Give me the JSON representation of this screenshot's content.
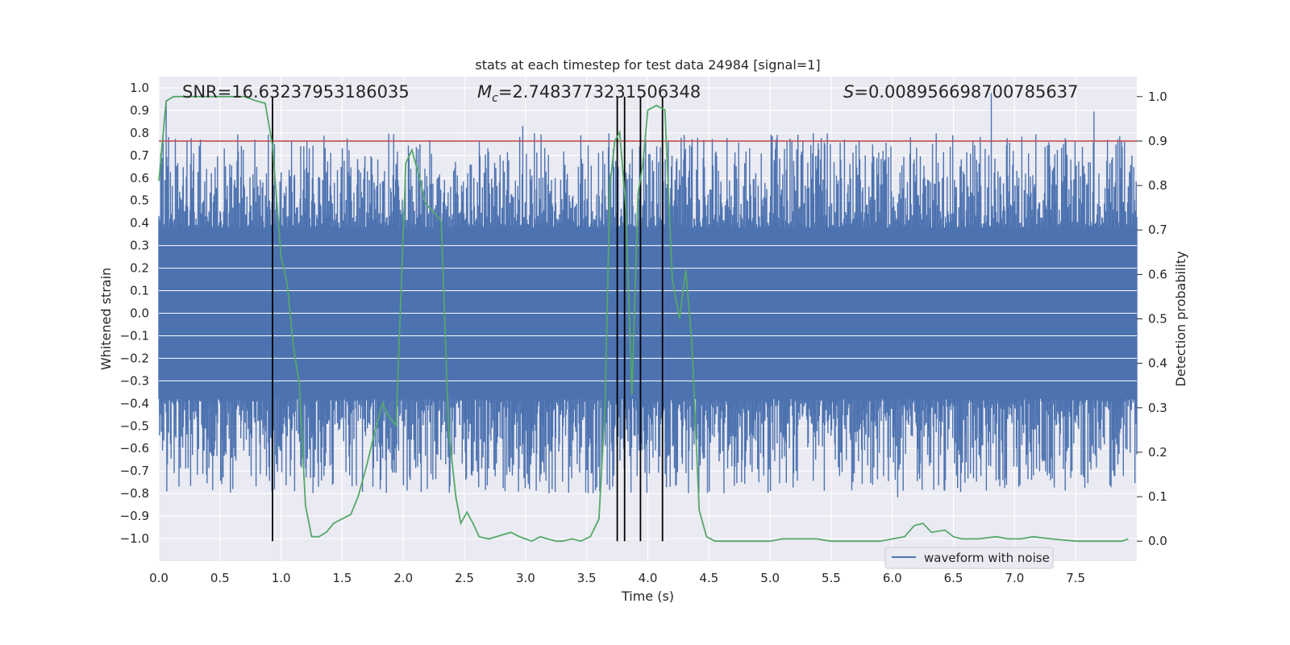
{
  "chart_data": {
    "type": "line",
    "title": "stats at each timestep for test data 24984 [signal=1]",
    "xlabel": "Time (s)",
    "ylabel": "Whitened strain",
    "y2label": "Detection probability",
    "xlim": [
      0.0,
      8.0
    ],
    "ylim": [
      -1.1,
      1.05
    ],
    "y2lim": [
      -0.045,
      1.045
    ],
    "x_ticks": [
      "0.0",
      "0.5",
      "1.0",
      "1.5",
      "2.0",
      "2.5",
      "3.0",
      "3.5",
      "4.0",
      "4.5",
      "5.0",
      "5.5",
      "6.0",
      "6.5",
      "7.0",
      "7.5"
    ],
    "y_ticks": [
      "1.0",
      "0.9",
      "0.8",
      "0.7",
      "0.6",
      "0.5",
      "0.4",
      "0.3",
      "0.2",
      "0.1",
      "0.0",
      "-0.1",
      "-0.2",
      "-0.3",
      "-0.4",
      "-0.5",
      "-0.6",
      "-0.7",
      "-0.8",
      "-0.9",
      "-1.0"
    ],
    "y2_ticks": [
      "1.0",
      "0.9",
      "0.8",
      "0.7",
      "0.6",
      "0.5",
      "0.4",
      "0.3",
      "0.2",
      "0.1",
      "0.0"
    ],
    "annotations": {
      "snr": "SNR=16.63237953186035",
      "mc_prefix": "M",
      "mc_sub": "c",
      "mc_value": "=2.7483773231506348",
      "s_prefix": "S",
      "s_value": "=0.008956698700785637"
    },
    "legend": {
      "label": "waveform with noise",
      "position": "lower-right"
    },
    "threshold": 0.9,
    "vlines": [
      0.93,
      3.75,
      3.81,
      3.94,
      4.12
    ],
    "waveform": {
      "name": "waveform with noise",
      "color": "#4c72b0",
      "x_range": [
        0.0,
        8.0
      ],
      "samples": 1600,
      "core_amplitude": 0.38,
      "typical_peak": 0.55
    },
    "probability": {
      "name": "detection probability",
      "color": "#55a868",
      "x": [
        0.0,
        0.06,
        0.12,
        0.2,
        0.3,
        0.5,
        0.7,
        0.8,
        0.87,
        0.93,
        1.0,
        1.05,
        1.1,
        1.15,
        1.2,
        1.25,
        1.31,
        1.37,
        1.43,
        1.5,
        1.57,
        1.63,
        1.7,
        1.77,
        1.83,
        1.88,
        1.94,
        1.98,
        2.02,
        2.07,
        2.13,
        2.18,
        2.25,
        2.31,
        2.37,
        2.43,
        2.47,
        2.52,
        2.57,
        2.62,
        2.7,
        2.76,
        2.82,
        2.88,
        2.95,
        3.0,
        3.05,
        3.12,
        3.18,
        3.25,
        3.3,
        3.38,
        3.45,
        3.53,
        3.6,
        3.65,
        3.69,
        3.73,
        3.77,
        3.82,
        3.87,
        3.92,
        3.96,
        4.0,
        4.07,
        4.14,
        4.2,
        4.26,
        4.31,
        4.36,
        4.42,
        4.48,
        4.55,
        4.65,
        4.8,
        5.0,
        5.1,
        5.25,
        5.38,
        5.5,
        5.7,
        5.9,
        6.0,
        6.1,
        6.18,
        6.25,
        6.32,
        6.43,
        6.5,
        6.57,
        6.7,
        6.85,
        6.95,
        7.05,
        7.15,
        7.3,
        7.5,
        7.7,
        7.88,
        7.93
      ],
      "values": [
        0.81,
        0.99,
        1.0,
        1.0,
        1.0,
        1.0,
        1.0,
        0.99,
        0.985,
        0.89,
        0.64,
        0.58,
        0.44,
        0.35,
        0.08,
        0.01,
        0.01,
        0.02,
        0.04,
        0.05,
        0.06,
        0.1,
        0.17,
        0.25,
        0.31,
        0.28,
        0.26,
        0.55,
        0.85,
        0.88,
        0.82,
        0.76,
        0.74,
        0.72,
        0.25,
        0.1,
        0.04,
        0.065,
        0.04,
        0.01,
        0.005,
        0.01,
        0.015,
        0.02,
        0.01,
        0.005,
        0.0,
        0.01,
        0.005,
        0.0,
        0.0,
        0.005,
        0.0,
        0.01,
        0.05,
        0.3,
        0.8,
        0.9,
        0.92,
        0.75,
        0.33,
        0.78,
        0.85,
        0.97,
        0.98,
        0.97,
        0.59,
        0.5,
        0.61,
        0.45,
        0.07,
        0.01,
        0.0,
        0.0,
        0.0,
        0.0,
        0.005,
        0.005,
        0.005,
        0.0,
        0.0,
        0.0,
        0.005,
        0.01,
        0.035,
        0.04,
        0.02,
        0.025,
        0.01,
        0.005,
        0.005,
        0.01,
        0.005,
        0.005,
        0.01,
        0.005,
        0.0,
        0.0,
        0.0,
        0.005
      ]
    }
  }
}
